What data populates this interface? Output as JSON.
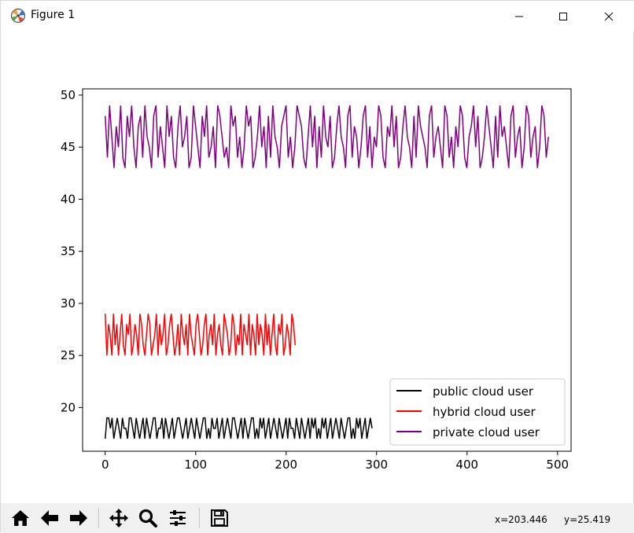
{
  "window": {
    "title": "Figure 1",
    "controls": [
      "minimize",
      "maximize",
      "close"
    ]
  },
  "toolbar": {
    "buttons": [
      "home-icon",
      "back-arrow-icon",
      "forward-arrow-icon",
      "pan-icon",
      "zoom-icon",
      "configure-subplots-icon",
      "save-icon"
    ],
    "x_readout": "x=203.446",
    "y_readout": "y=25.419"
  },
  "chart_data": {
    "type": "line",
    "title": "",
    "xlabel": "",
    "ylabel": "",
    "xlim": [
      -25,
      515
    ],
    "ylim": [
      15.8,
      50.6
    ],
    "xticks": [
      0,
      100,
      200,
      300,
      400,
      500
    ],
    "yticks": [
      20,
      25,
      30,
      35,
      40,
      45,
      50
    ],
    "grid": false,
    "legend_position": "lower-right",
    "series": [
      {
        "name": "public cloud user",
        "color": "#000000",
        "x_range": [
          0,
          295
        ],
        "y_range": [
          17,
          19
        ],
        "values": [
          17,
          19,
          19,
          18,
          19,
          17,
          18,
          19,
          18,
          17,
          19,
          18,
          18,
          17,
          19,
          19,
          18,
          17,
          19,
          18,
          17,
          18,
          19,
          17,
          19,
          18,
          17,
          18,
          19,
          19,
          17,
          18,
          18,
          19,
          17,
          19,
          18,
          17,
          18,
          19,
          17,
          18,
          19,
          19,
          18,
          17,
          18,
          19,
          17,
          18,
          19,
          18,
          17,
          19,
          18,
          17,
          18,
          19,
          19,
          17,
          18,
          17,
          19,
          18,
          18,
          19,
          17,
          18,
          19,
          17,
          18,
          19,
          18,
          17,
          19,
          19,
          18,
          17,
          18,
          19,
          17,
          19,
          18,
          17,
          18,
          19,
          19,
          17,
          18,
          17,
          19,
          18,
          19,
          17,
          18,
          19,
          17,
          18,
          19,
          18,
          17,
          19,
          18,
          17,
          18,
          19,
          17,
          19,
          18,
          18,
          17,
          19,
          18,
          17,
          19,
          18,
          17,
          18,
          19,
          17,
          19,
          18,
          19,
          17,
          18,
          17,
          19,
          18,
          19,
          17,
          18,
          19,
          17,
          18,
          19,
          18,
          17,
          19,
          18,
          17,
          18,
          19,
          19,
          17,
          18,
          17,
          19,
          18,
          19,
          17,
          18,
          19,
          17,
          18,
          19,
          18
        ]
      },
      {
        "name": "hybrid cloud user",
        "color": "#ff0000",
        "x_range": [
          0,
          210
        ],
        "y_range": [
          25,
          29
        ],
        "values": [
          29,
          25,
          28,
          27,
          25,
          29,
          26,
          28,
          25,
          27,
          29,
          26,
          25,
          28,
          27,
          29,
          25,
          26,
          28,
          27,
          25,
          29,
          28,
          26,
          25,
          27,
          29,
          28,
          25,
          26,
          27,
          29,
          25,
          28,
          26,
          27,
          29,
          25,
          26,
          28,
          29,
          27,
          25,
          26,
          28,
          25,
          29,
          27,
          26,
          28,
          25,
          29,
          27,
          26,
          25,
          28,
          29,
          27,
          25,
          26,
          28,
          29,
          25,
          27,
          28,
          26,
          29,
          25,
          27,
          28,
          26,
          25,
          29,
          28,
          27,
          25,
          26,
          29,
          28,
          25,
          27,
          26,
          29,
          25,
          28,
          27,
          26,
          29,
          25,
          28,
          27,
          25,
          29,
          26,
          28,
          27,
          25,
          29,
          26,
          28,
          25,
          27,
          29,
          26,
          25,
          28,
          27,
          29,
          25,
          26,
          28,
          27,
          25,
          29,
          28,
          26
        ]
      },
      {
        "name": "private cloud user",
        "color": "#800080",
        "x_range": [
          0,
          490
        ],
        "y_range": [
          43,
          49
        ],
        "values": [
          48,
          44,
          49,
          46,
          43,
          47,
          45,
          49,
          44,
          43,
          48,
          46,
          49,
          45,
          43,
          47,
          48,
          44,
          49,
          46,
          45,
          43,
          48,
          49,
          44,
          47,
          45,
          43,
          49,
          46,
          48,
          44,
          43,
          47,
          49,
          45,
          46,
          48,
          43,
          44,
          49,
          47,
          45,
          43,
          48,
          46,
          49,
          44,
          45,
          47,
          43,
          49,
          48,
          46,
          44,
          45,
          43,
          49,
          47,
          48,
          44,
          46,
          43,
          45,
          49,
          47,
          48,
          43,
          44,
          46,
          49,
          45,
          47,
          43,
          48,
          44,
          49,
          46,
          45,
          43,
          47,
          48,
          49,
          44,
          46,
          43,
          45,
          49,
          48,
          47,
          44,
          43,
          46,
          49,
          45,
          48,
          43,
          47,
          44,
          49,
          46,
          45,
          48,
          43,
          44,
          47,
          49,
          46,
          45,
          43,
          48,
          49,
          44,
          47,
          46,
          43,
          45,
          48,
          49,
          44,
          47,
          43,
          46,
          45,
          49,
          48,
          44,
          43,
          47,
          46,
          49,
          45,
          48,
          43,
          44,
          47,
          49,
          46,
          45,
          43,
          48,
          44,
          49,
          47,
          46,
          45,
          43,
          48,
          49,
          44,
          46,
          47,
          45,
          43,
          49,
          48,
          44,
          46,
          43,
          47,
          45,
          49,
          48,
          44,
          43,
          46,
          47,
          49,
          45,
          48,
          43,
          44,
          46,
          49,
          47,
          45,
          43,
          48,
          44,
          49,
          46,
          47,
          45,
          43,
          48,
          49,
          44,
          46,
          47,
          43,
          45,
          49,
          48,
          44,
          46,
          47,
          43,
          45,
          49,
          48,
          44,
          46
        ]
      }
    ]
  }
}
